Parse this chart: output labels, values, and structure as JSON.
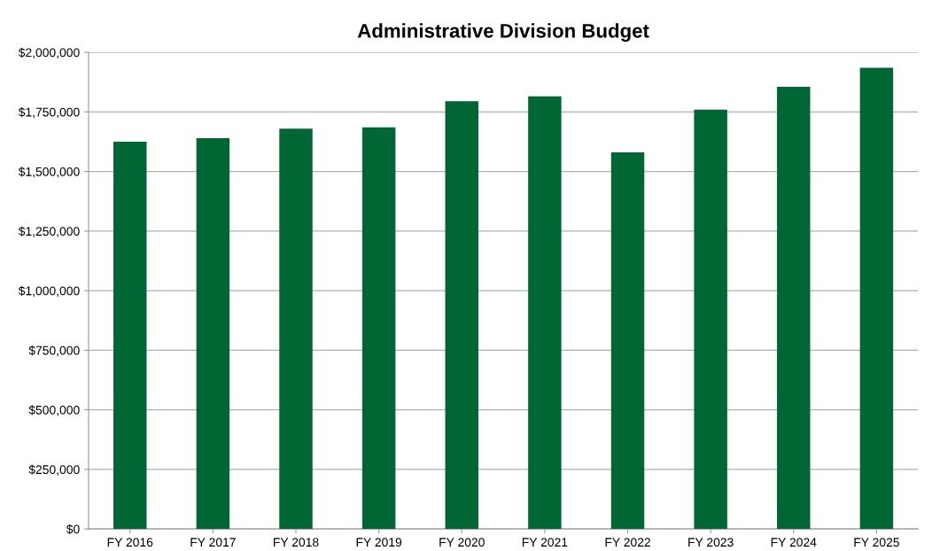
{
  "chart_data": {
    "type": "bar",
    "title": "Administrative Division Budget",
    "categories": [
      "FY 2016",
      "FY 2017",
      "FY 2018",
      "FY 2019",
      "FY 2020",
      "FY 2021",
      "FY 2022",
      "FY 2023",
      "FY 2024",
      "FY 2025"
    ],
    "values": [
      1625000,
      1640000,
      1680000,
      1685000,
      1795000,
      1815000,
      1580000,
      1760000,
      1855000,
      1935000
    ],
    "color": "#006633",
    "ylim": [
      0,
      2000000
    ],
    "yticks": [
      {
        "value": 0,
        "label": "$0"
      },
      {
        "value": 250000,
        "label": "$250,000"
      },
      {
        "value": 500000,
        "label": "$500,000"
      },
      {
        "value": 750000,
        "label": "$750,000"
      },
      {
        "value": 1000000,
        "label": "$1,000,000"
      },
      {
        "value": 1250000,
        "label": "$1,250,000"
      },
      {
        "value": 1500000,
        "label": "$1,500,000"
      },
      {
        "value": 1750000,
        "label": "$1,750,000"
      },
      {
        "value": 2000000,
        "label": "$2,000,000"
      }
    ],
    "grid": "y",
    "legend": false
  }
}
